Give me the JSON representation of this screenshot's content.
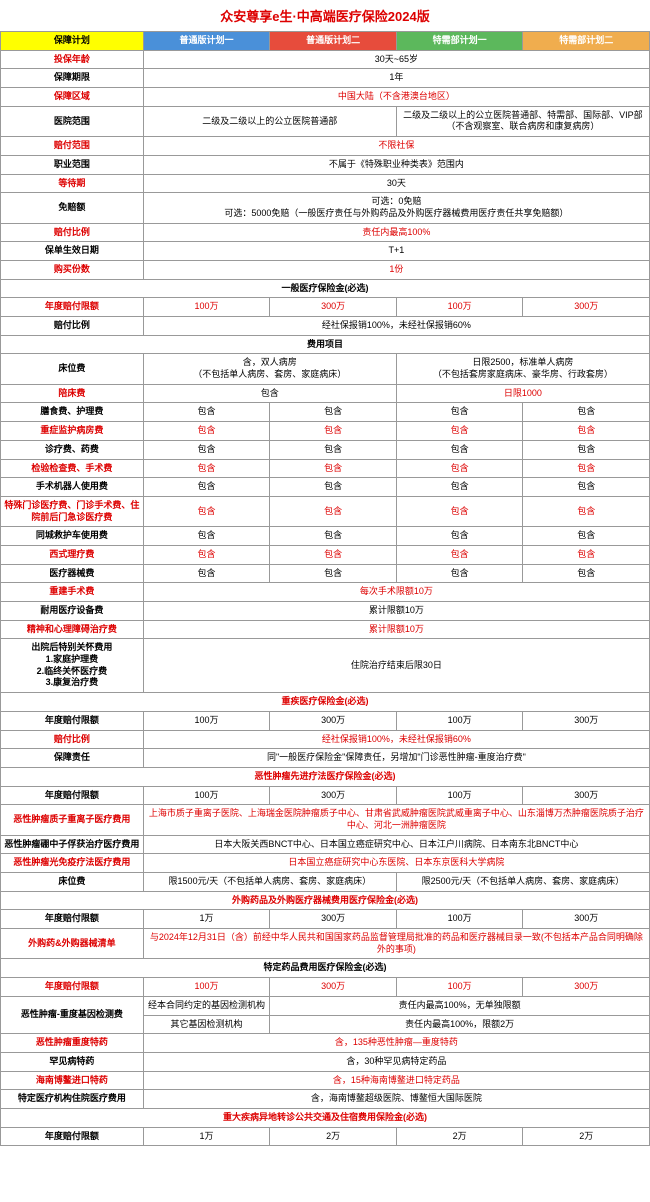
{
  "title": "众安尊享e生·中高端医疗保险2024版",
  "headers": [
    "保障计划",
    "普通版计划一",
    "普通版计划二",
    "特需部计划一",
    "特需部计划二"
  ],
  "rows": [
    {
      "lbl": "投保年龄",
      "red": true,
      "span": "30天~65岁"
    },
    {
      "lbl": "保障期限",
      "span": "1年"
    },
    {
      "lbl": "保障区域",
      "red": true,
      "span": "中国大陆（不含港澳台地区）",
      "sred": true
    },
    {
      "lbl": "医院范围",
      "c12": "二级及二级以上的公立医院普通部",
      "c34": "二级及二级以上的公立医院普通部、特需部、国际部、VIP部（不含观察室、联合病房和康复病房）"
    },
    {
      "lbl": "赔付范围",
      "red": true,
      "span": "不限社保",
      "sred": true
    },
    {
      "lbl": "职业范围",
      "span": "不属于《特殊职业种类表》范围内"
    },
    {
      "lbl": "等待期",
      "red": true,
      "span": "30天"
    },
    {
      "lbl": "免赔额",
      "span": "可选：0免赔\n可选：5000免赔（一般医疗责任与外购药品及外购医疗器械费用医疗责任共享免赔额）"
    },
    {
      "lbl": "赔付比例",
      "red": true,
      "span": "责任内最高100%",
      "sred": true
    },
    {
      "lbl": "保单生效日期",
      "span": "T+1"
    },
    {
      "lbl": "购买份数",
      "red": true,
      "span": "1份",
      "sred": true
    }
  ],
  "sect1": "一般医疗保险金(必选)",
  "sect1rows": [
    {
      "lbl": "年度赔付限额",
      "red": true,
      "vals": [
        "100万",
        "300万",
        "100万",
        "300万"
      ],
      "vred": true
    },
    {
      "lbl": "赔付比例",
      "span": "经社保报销100%，未经社保报销60%"
    }
  ],
  "sect2": "费用项目",
  "sect2rows": [
    {
      "lbl": "床位费",
      "c12": "含，双人病房\n（不包括单人病房、套房、家庭病床）",
      "c34": "日限2500，标准单人病房\n（不包括套房家庭病床、豪华房、行政套房）"
    },
    {
      "lbl": "陪床费",
      "red": true,
      "c12": "包含",
      "c34": "日限1000",
      "c34red": true
    },
    {
      "lbl": "膳食费、护理费",
      "vals": [
        "包含",
        "包含",
        "包含",
        "包含"
      ]
    },
    {
      "lbl": "重症监护病房费",
      "red": true,
      "vals": [
        "包含",
        "包含",
        "包含",
        "包含"
      ],
      "vred": true
    },
    {
      "lbl": "诊疗费、药费",
      "vals": [
        "包含",
        "包含",
        "包含",
        "包含"
      ]
    },
    {
      "lbl": "检验检查费、手术费",
      "red": true,
      "vals": [
        "包含",
        "包含",
        "包含",
        "包含"
      ],
      "vred": true
    },
    {
      "lbl": "手术机器人使用费",
      "vals": [
        "包含",
        "包含",
        "包含",
        "包含"
      ]
    },
    {
      "lbl": "特殊门诊医疗费、门诊手术费、住院前后门急诊医疗费",
      "red": true,
      "vals": [
        "包含",
        "包含",
        "包含",
        "包含"
      ],
      "vred": true
    },
    {
      "lbl": "同城救护车使用费",
      "vals": [
        "包含",
        "包含",
        "包含",
        "包含"
      ]
    },
    {
      "lbl": "西式理疗费",
      "red": true,
      "vals": [
        "包含",
        "包含",
        "包含",
        "包含"
      ],
      "vred": true
    },
    {
      "lbl": "医疗器械费",
      "vals": [
        "包含",
        "包含",
        "包含",
        "包含"
      ]
    },
    {
      "lbl": "重建手术费",
      "red": true,
      "span": "每次手术限额10万",
      "sred": true
    },
    {
      "lbl": "耐用医疗设备费",
      "span": "累计限额10万"
    },
    {
      "lbl": "精神和心理障碍治疗费",
      "red": true,
      "span": "累计限额10万",
      "sred": true
    },
    {
      "lbl": "出院后特别关怀费用\n1.家庭护理费\n2.临终关怀医疗费\n3.康复治疗费",
      "span": "住院治疗结束后限30日"
    }
  ],
  "sect3": "重疾医疗保险金(必选)",
  "sect3rows": [
    {
      "lbl": "年度赔付限额",
      "vals": [
        "100万",
        "300万",
        "100万",
        "300万"
      ]
    },
    {
      "lbl": "赔付比例",
      "red": true,
      "span": "经社保报销100%，未经社保报销60%",
      "sred": true
    },
    {
      "lbl": "保障责任",
      "span": "同\"一般医疗保险金\"保障责任，另增加\"门诊恶性肿瘤-重度治疗费\""
    }
  ],
  "sect4": "恶性肿瘤先进疗法医疗保险金(必选)",
  "sect4rows": [
    {
      "lbl": "年度赔付限额",
      "vals": [
        "100万",
        "300万",
        "100万",
        "300万"
      ]
    },
    {
      "lbl": "恶性肿瘤质子重离子医疗费用",
      "red": true,
      "span": "上海市质子重离子医院、上海瑞金医院肿瘤质子中心、甘肃省武威肿瘤医院武威重离子中心、山东淄博万杰肿瘤医院质子治疗中心、河北一洲肿瘤医院",
      "sred": true
    },
    {
      "lbl": "恶性肿瘤硼中子俘获治疗医疗费用",
      "span": "日本大阪关西BNCT中心、日本国立癌症研究中心、日本江户川病院、日本南东北BNCT中心"
    },
    {
      "lbl": "恶性肿瘤光免疫疗法医疗费用",
      "red": true,
      "span": "日本国立癌症研究中心东医院、日本东京医科大学病院",
      "sred": true
    },
    {
      "lbl": "床位费",
      "c12": "限1500元/天（不包括单人病房、套房、家庭病床）",
      "c34": "限2500元/天（不包括单人病房、套房、家庭病床）"
    }
  ],
  "sect5": "外购药品及外购医疗器械费用医疗保险金(必选)",
  "sect5rows": [
    {
      "lbl": "年度赔付限额",
      "vals": [
        "1万",
        "300万",
        "100万",
        "300万"
      ]
    },
    {
      "lbl": "外购药&外购器械清单",
      "red": true,
      "span": "与2024年12月31日（含）前经中华人民共和国国家药品监督管理局批准的药品和医疗器械目录一致(不包括本产品合同明确除外的事项)",
      "sred": true
    }
  ],
  "sect6": "特定药品费用医疗保险金(必选)",
  "sect6rows": [
    {
      "lbl": "年度赔付限额",
      "red": true,
      "vals": [
        "100万",
        "300万",
        "100万",
        "300万"
      ],
      "vred": true
    },
    {
      "lbl": "恶性肿瘤-重度基因检测费",
      "sub": [
        {
          "l": "经本合同约定的基因检测机构",
          "v": "责任内最高100%，无单独限额"
        },
        {
          "l": "其它基因检测机构",
          "v": "责任内最高100%，限额2万"
        }
      ]
    },
    {
      "lbl": "恶性肿瘤重度特药",
      "red": true,
      "span": "含，135种恶性肿瘤—重度特药",
      "sred": true
    },
    {
      "lbl": "罕见病特药",
      "span": "含，30种罕见病特定药品"
    },
    {
      "lbl": "海南博鳌进口特药",
      "red": true,
      "span": "含，15种海南博鳌进口特定药品",
      "sred": true
    },
    {
      "lbl": "特定医疗机构住院医疗费用",
      "span": "含，海南博鳌超级医院、博鳌恒大国际医院"
    }
  ],
  "sect7": "重大疾病异地转诊公共交通及住宿费用保险金(必选)",
  "sect7rows": [
    {
      "lbl": "年度赔付限额",
      "vals": [
        "1万",
        "2万",
        "2万",
        "2万"
      ]
    }
  ]
}
